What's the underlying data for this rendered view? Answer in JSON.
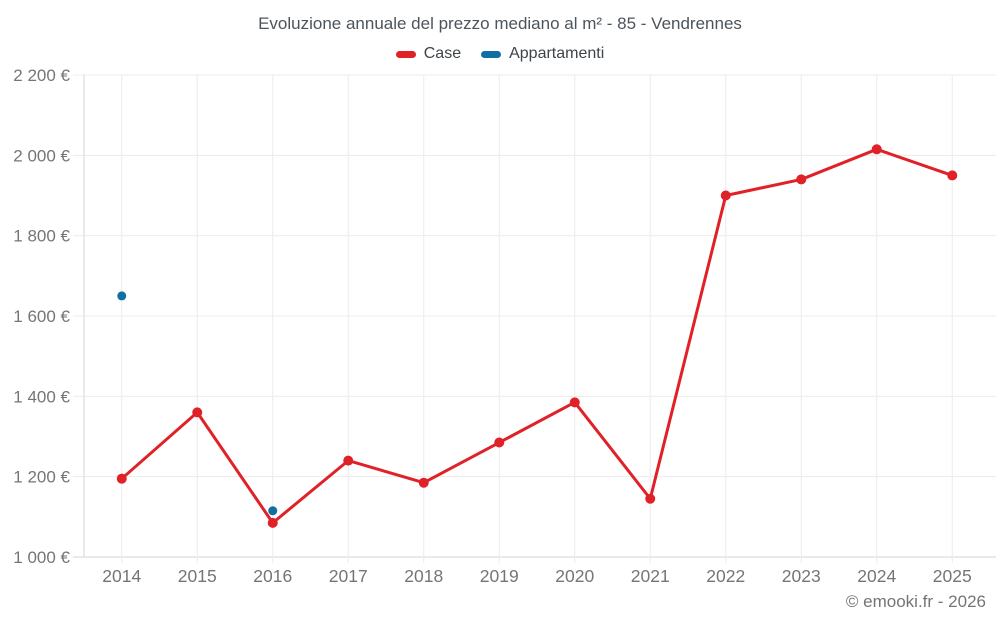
{
  "footer": {
    "copyright": "© emooki.fr - 2026"
  },
  "chart_data": {
    "type": "line",
    "title": "Evoluzione annuale del prezzo mediano al m² - 85 - Vendrennes",
    "xlabel": "",
    "ylabel": "",
    "categories": [
      "2014",
      "2015",
      "2016",
      "2017",
      "2018",
      "2019",
      "2020",
      "2021",
      "2022",
      "2023",
      "2024",
      "2025"
    ],
    "series": [
      {
        "name": "Case",
        "color": "#e02128",
        "style": "line_with_points",
        "values": [
          1195,
          1360,
          1085,
          1240,
          1185,
          1285,
          1385,
          1145,
          1900,
          1940,
          2015,
          1950
        ]
      },
      {
        "name": "Appartamenti",
        "color": "#0f6fa0",
        "style": "points_only",
        "values": [
          1650,
          null,
          1115,
          null,
          null,
          null,
          null,
          null,
          null,
          null,
          null,
          null
        ]
      }
    ],
    "ylim": [
      1000,
      2200
    ],
    "yticks": [
      {
        "value": 1000,
        "label": "1 000 €"
      },
      {
        "value": 1200,
        "label": "1 200 €"
      },
      {
        "value": 1400,
        "label": "1 400 €"
      },
      {
        "value": 1600,
        "label": "1 600 €"
      },
      {
        "value": 1800,
        "label": "1 800 €"
      },
      {
        "value": 2000,
        "label": "2 000 €"
      },
      {
        "value": 2200,
        "label": "2 200 €"
      }
    ],
    "grid": true,
    "legend_position": "top",
    "colors": {
      "grid_line": "#ececec",
      "axis_line": "#d6d6d6",
      "tick_label": "#757575",
      "title_text": "#4c545c",
      "legend_text": "#3f4449",
      "background": "#ffffff"
    }
  }
}
